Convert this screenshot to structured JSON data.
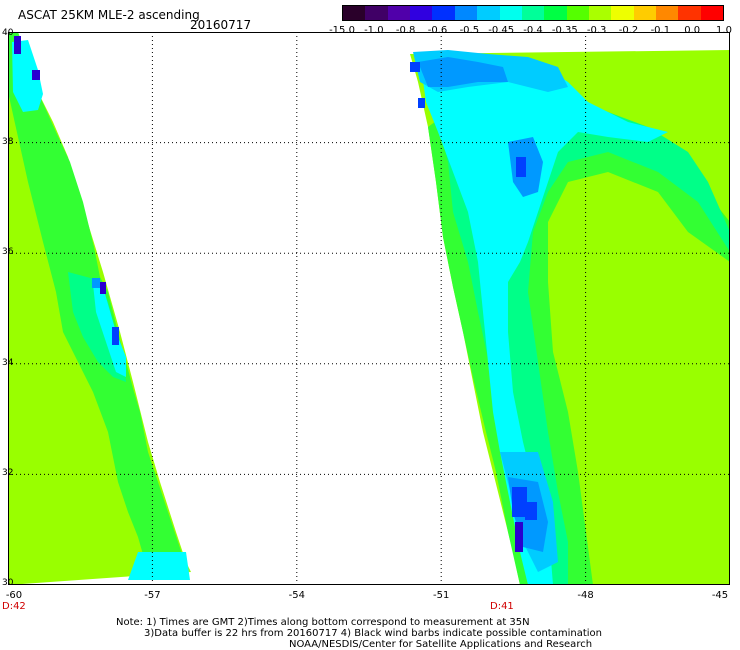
{
  "header": {
    "title": "ASCAT 25KM MLE-2 ascending",
    "date": "20160717"
  },
  "colorbar": {
    "colors": [
      "#2a002a",
      "#400066",
      "#5000aa",
      "#3000e0",
      "#0030ff",
      "#0088ff",
      "#00ccff",
      "#00ffee",
      "#00ff99",
      "#00ff44",
      "#55ff00",
      "#aaff00",
      "#eeff00",
      "#ffcc00",
      "#ff8800",
      "#ff3300",
      "#ff0000"
    ],
    "labels": [
      "-15.0",
      "-1.0",
      "-0.8",
      "-0.6",
      "-0.5",
      "-0.45",
      "-0.4",
      "-0.35",
      "-0.3",
      "-0.2",
      "-0.1",
      "0.0",
      "1.0"
    ]
  },
  "map": {
    "lat_labels": [
      "40",
      "38",
      "36",
      "34",
      "32",
      "30"
    ],
    "lon_labels": [
      "-60",
      "-57",
      "-54",
      "-51",
      "-48",
      "-45"
    ],
    "swath_colors": {
      "base": "#99ff00",
      "green": "#33ff33",
      "teal": "#00ff88",
      "cyan": "#00ffff",
      "light_blue": "#00ccff",
      "blue": "#0099ff",
      "royal": "#0040ff",
      "deep": "#2a00d0"
    }
  },
  "time_labels": {
    "left": "D:42",
    "right": "D:41"
  },
  "footer": {
    "line1": "Note: 1) Times are GMT 2)Times along bottom correspond to measurement at 35N",
    "line2": "3)Data buffer is 22 hrs from 20160717 4) Black wind barbs indicate possible contamination",
    "line3": "NOAA/NESDIS/Center for Satellite Applications and Research"
  }
}
